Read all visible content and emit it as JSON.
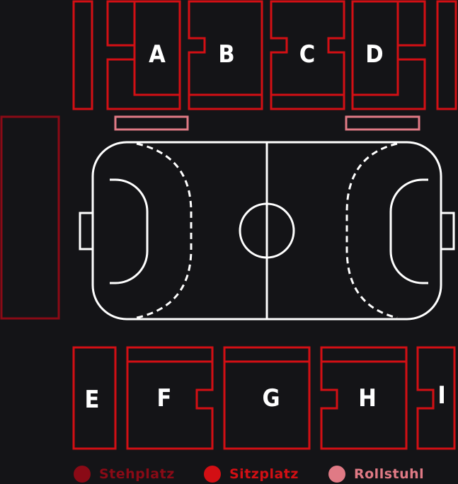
{
  "colors": {
    "background": "#141417",
    "standing": "#8a0a16",
    "seating": "#d30f14",
    "wheelchair": "#e07a85",
    "court_lines": "#ffffff",
    "label_text": "#ffffff"
  },
  "blocks": {
    "A": "A",
    "B": "B",
    "C": "C",
    "D": "D",
    "E": "E",
    "F": "F",
    "G": "G",
    "H": "H",
    "I": "I"
  },
  "legend": [
    {
      "key": "standing",
      "label": "Stehplatz",
      "color": "#8a0a16"
    },
    {
      "key": "seating",
      "label": "Sitzplatz",
      "color": "#d30f14"
    },
    {
      "key": "wheelchair",
      "label": "Rollstuhl",
      "color": "#e07a85"
    }
  ]
}
